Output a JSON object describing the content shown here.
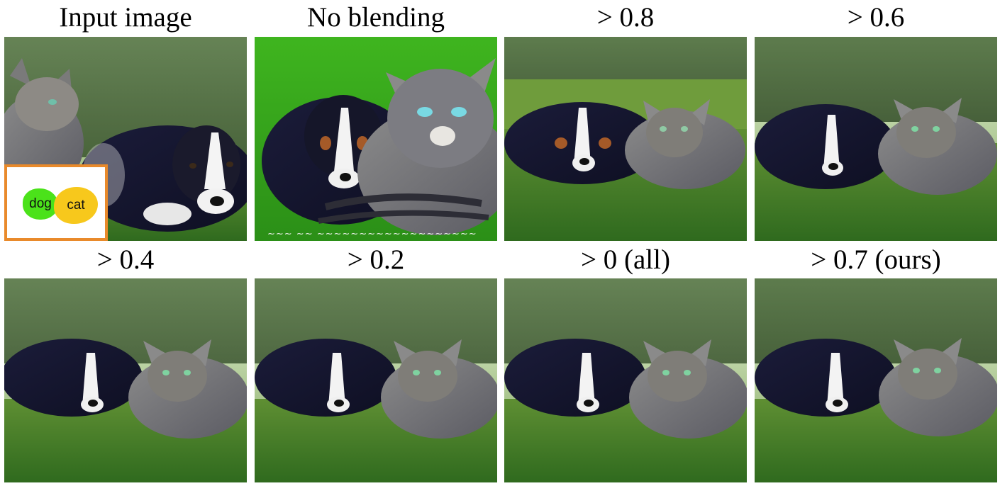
{
  "figure": {
    "panels": [
      {
        "id": "input",
        "caption": "Input image",
        "mask_labels": [
          "dog",
          "cat"
        ]
      },
      {
        "id": "no-blending",
        "caption": "No blending"
      },
      {
        "id": "gt-08",
        "caption": "> 0.8"
      },
      {
        "id": "gt-06",
        "caption": "> 0.6"
      },
      {
        "id": "gt-04",
        "caption": "> 0.4"
      },
      {
        "id": "gt-02",
        "caption": "> 0.2"
      },
      {
        "id": "gt-0",
        "caption": "> 0 (all)"
      },
      {
        "id": "gt-07-ours",
        "caption": "> 0.7 (ours)"
      }
    ],
    "colors": {
      "mask_border": "#e98a2b",
      "mask_dog": "#4be21a",
      "mask_cat": "#f7c81c"
    }
  }
}
